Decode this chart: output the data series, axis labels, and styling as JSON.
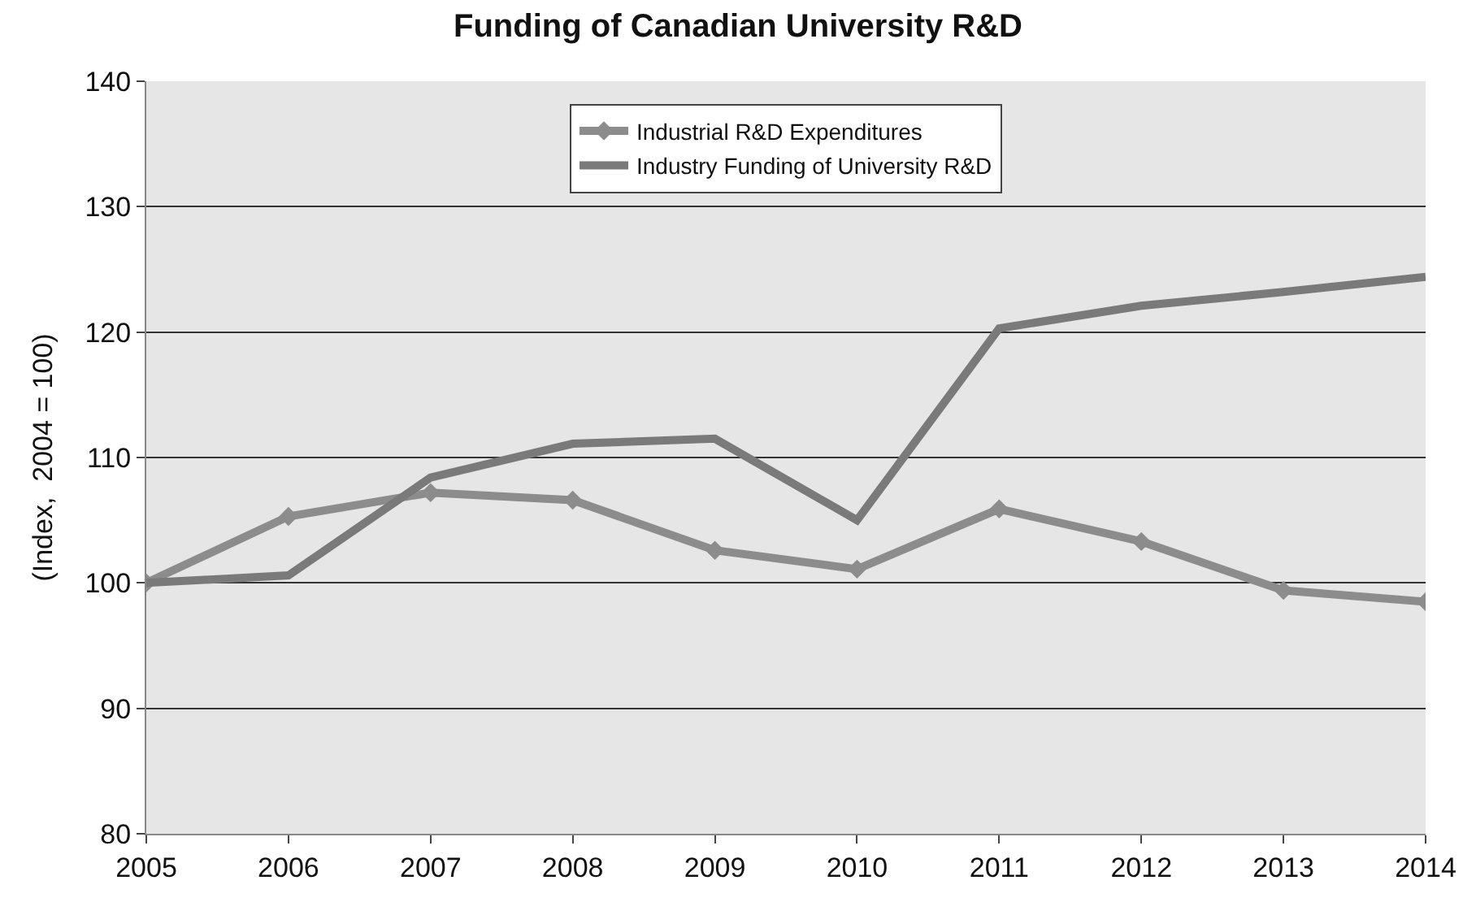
{
  "chart_data": {
    "type": "line",
    "title": "Funding of Canadian University R&D",
    "ylabel": "(Index,  2004 = 100)",
    "x": [
      2005,
      2006,
      2007,
      2008,
      2009,
      2010,
      2011,
      2012,
      2013,
      2014
    ],
    "series": [
      {
        "name": "Industrial R&D Expenditures",
        "color": "#8c8c8c",
        "marker": "diamond",
        "values": [
          100,
          105.3,
          107.2,
          106.6,
          102.6,
          101.1,
          105.9,
          103.3,
          99.4,
          98.5
        ]
      },
      {
        "name": "Industry Funding of University R&D",
        "color": "#7a7a7a",
        "marker": "none",
        "values": [
          100,
          100.6,
          108.4,
          111.1,
          111.5,
          105,
          120.3,
          122.1,
          123.2,
          124.4
        ]
      }
    ],
    "xlim": [
      2005,
      2014
    ],
    "xticks": [
      2005,
      2006,
      2007,
      2008,
      2009,
      2010,
      2011,
      2012,
      2013,
      2014
    ],
    "ylim": [
      80,
      140
    ],
    "yticks": [
      80,
      90,
      100,
      110,
      120,
      130,
      140
    ],
    "grid": "y",
    "legend": "top",
    "line_style": "solid"
  }
}
